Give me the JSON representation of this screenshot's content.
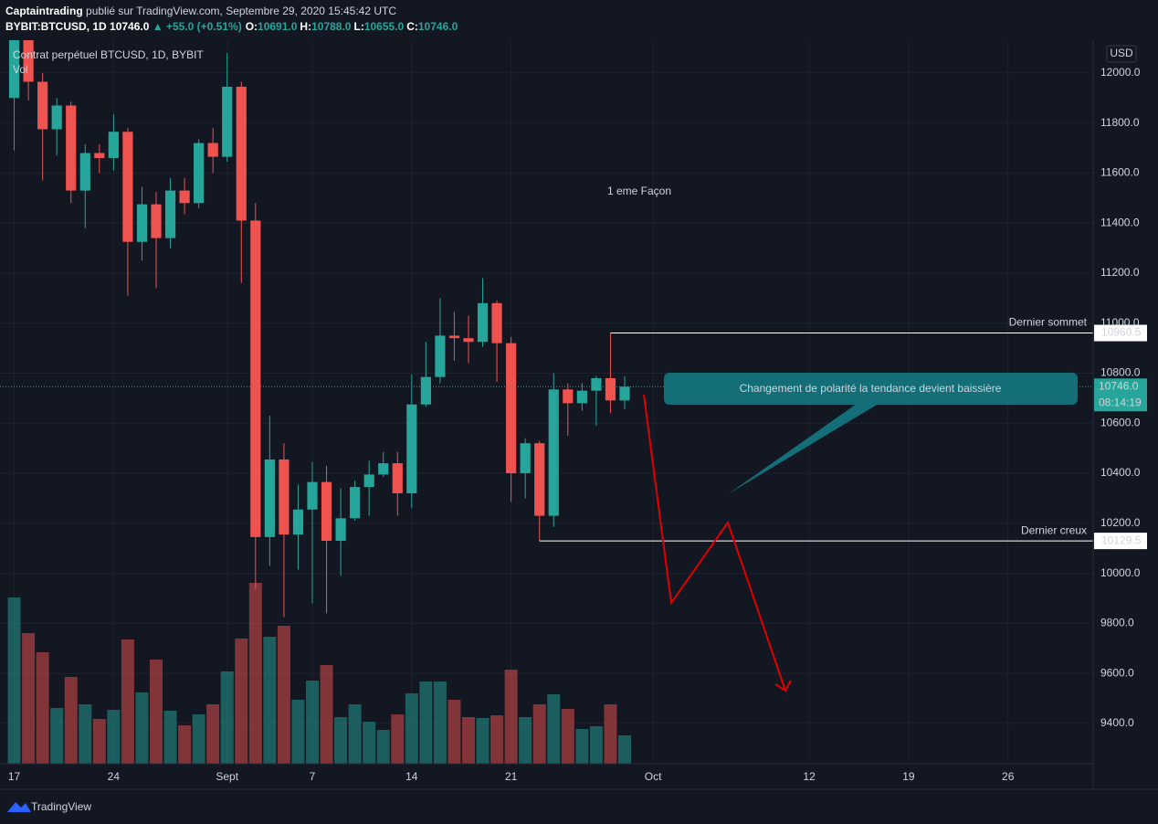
{
  "header": {
    "author": "Captaintrading",
    "published": "publié sur TradingView.com, Septembre 29, 2020 15:45:42 UTC",
    "symbol": "BYBIT:BTCUSD, 1D",
    "last": "10746.0",
    "change": "▲ +55.0 (+0.51%)",
    "ohlc": [
      {
        "label": "O:",
        "value": "10691.0"
      },
      {
        "label": "H:",
        "value": "10788.0"
      },
      {
        "label": "L:",
        "value": "10655.0"
      },
      {
        "label": "C:",
        "value": "10746.0"
      }
    ]
  },
  "chart_data": {
    "type": "candlestick",
    "legend_title": "Contrat perpétuel BTCUSD, 1D, BYBIT",
    "volume_label": "Vol",
    "currency": "USD",
    "up_color": "#26a69a",
    "down_color": "#ef5350",
    "grid": true,
    "open": [
      11900,
      12290,
      11965,
      11775,
      11870,
      11530,
      11680,
      11660,
      11765,
      11325,
      11475,
      11340,
      11530,
      11480,
      11720,
      11665,
      11945,
      11410,
      10145,
      10455,
      10155,
      10255,
      10365,
      10130,
      10220,
      10345,
      10395,
      10440,
      10320,
      10675,
      10785,
      10950,
      10940,
      10925,
      11080,
      10920,
      10400,
      10520,
      10230,
      10735,
      10680,
      10730,
      10780,
      10691
    ],
    "high": [
      12480,
      12400,
      12000,
      11900,
      11885,
      11715,
      11715,
      11835,
      11780,
      11545,
      11525,
      11580,
      11580,
      11735,
      11780,
      12080,
      11965,
      11480,
      10630,
      10520,
      10355,
      10445,
      10430,
      10340,
      10370,
      10450,
      10485,
      10485,
      10795,
      10925,
      11100,
      11045,
      11030,
      11180,
      11090,
      10945,
      10540,
      10530,
      10800,
      10760,
      10760,
      10790,
      10960.5,
      10788
    ],
    "low": [
      11690,
      11890,
      11570,
      11670,
      11480,
      11380,
      11600,
      11610,
      11110,
      11250,
      11140,
      11300,
      11435,
      11460,
      11600,
      11645,
      11160,
      9935,
      10030,
      9825,
      10015,
      9880,
      9840,
      9990,
      10210,
      10230,
      10385,
      10230,
      10260,
      10665,
      10760,
      10850,
      10840,
      10905,
      10765,
      10285,
      10300,
      10130,
      10185,
      10550,
      10650,
      10590,
      10640,
      10655
    ],
    "close": [
      12300,
      11965,
      11775,
      11870,
      11530,
      11680,
      11660,
      11765,
      11325,
      11475,
      11340,
      11530,
      11480,
      11720,
      11665,
      11945,
      11410,
      10145,
      10455,
      10155,
      10255,
      10365,
      10130,
      10220,
      10345,
      10395,
      10440,
      10320,
      10675,
      10785,
      10950,
      10940,
      10925,
      11080,
      10920,
      10400,
      10520,
      10230,
      10735,
      10680,
      10730,
      10780,
      10691,
      10746
    ],
    "volume": [
      182,
      143,
      122,
      61,
      95,
      65,
      49,
      59,
      136,
      78,
      114,
      58,
      42,
      54,
      65,
      101,
      137,
      198,
      139,
      151,
      70,
      91,
      108,
      51,
      65,
      46,
      37,
      54,
      77,
      90,
      90,
      70,
      51,
      50,
      53,
      103,
      51,
      65,
      76,
      60,
      38,
      41,
      65,
      31
    ],
    "vlim": [
      0,
      200
    ],
    "ylim": [
      9239,
      12131
    ],
    "yticks": [
      {
        "value": 9400,
        "label": "9400.0"
      },
      {
        "value": 9600,
        "label": "9600.0"
      },
      {
        "value": 9800,
        "label": "9800.0"
      },
      {
        "value": 10000,
        "label": "10000.0"
      },
      {
        "value": 10200,
        "label": "10200.0"
      },
      {
        "value": 10400,
        "label": "10400.0"
      },
      {
        "value": 10600,
        "label": "10600.0"
      },
      {
        "value": 10800,
        "label": "10800.0"
      },
      {
        "value": 11000,
        "label": "11000.0"
      },
      {
        "value": 11200,
        "label": "11200.0"
      },
      {
        "value": 11400,
        "label": "11400.0"
      },
      {
        "value": 11600,
        "label": "11600.0"
      },
      {
        "value": 11800,
        "label": "11800.0"
      },
      {
        "value": 12000,
        "label": "12000.0"
      }
    ],
    "xlim": [
      -1,
      76
    ],
    "xticks": [
      {
        "value": 0,
        "label": "17"
      },
      {
        "value": 7,
        "label": "24"
      },
      {
        "value": 15,
        "label": "Sept"
      },
      {
        "value": 21,
        "label": "7"
      },
      {
        "value": 28,
        "label": "14"
      },
      {
        "value": 35,
        "label": "21"
      },
      {
        "value": 45,
        "label": "Oct"
      },
      {
        "value": 56,
        "label": "12"
      },
      {
        "value": 63,
        "label": "19"
      },
      {
        "value": 70,
        "label": "26"
      }
    ],
    "last_price": {
      "value": 10746,
      "label": "10746.0"
    },
    "countdown": "08:14:19",
    "price_lines": [
      {
        "name": "Dernier sommet",
        "value": 10960.5
      },
      {
        "name": "Dernier creux",
        "value": 10129.5
      }
    ],
    "annotations": [
      "1 eme Façon",
      "Changement de polarité la tendance devient baissière"
    ]
  },
  "footer": {
    "brand": "TradingView"
  }
}
